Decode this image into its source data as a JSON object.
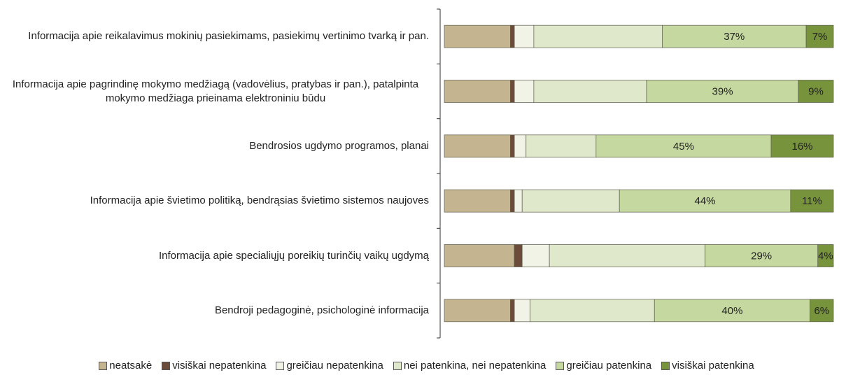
{
  "chart_data": {
    "type": "stacked-bar-horizontal",
    "categories": [
      "Informacija apie reikalavimus mokinių pasiekimams, pasiekimų vertinimo tvarką ir pan.",
      "Informacija apie pagrindinę mokymo medžiagą (vadovėlius, pratybas ir pan.), patalpinta mokymo medžiaga prieinama elektroniniu būdu",
      "Bendrosios ugdymo programos, planai",
      "Informacija apie švietimo politiką, bendrąsias švietimo sistemos naujoves",
      "Informacija apie specialiųjų poreikių turinčių vaikų ugdymą",
      "Bendroji pedagoginė, psichologinė informacija"
    ],
    "xlim": [
      0,
      100
    ],
    "series": [
      {
        "name": "neatsakė",
        "color": "#c4b48f",
        "values": [
          17,
          17,
          17,
          17,
          18,
          17
        ]
      },
      {
        "name": "visiškai nepatenkina",
        "color": "#6b4c3a",
        "values": [
          1,
          1,
          1,
          1,
          2,
          1
        ]
      },
      {
        "name": "greičiau nepatenkina",
        "color": "#f1f3e7",
        "values": [
          5,
          5,
          3,
          2,
          7,
          4
        ]
      },
      {
        "name": "nei patenkina, nei nepatenkina",
        "color": "#dfe8cb",
        "values": [
          33,
          29,
          18,
          25,
          40,
          32
        ]
      },
      {
        "name": "greičiau patenkina",
        "color": "#c4d89f",
        "values": [
          37,
          39,
          45,
          44,
          29,
          40
        ],
        "value_labels": [
          "37%",
          "39%",
          "45%",
          "44%",
          "29%",
          "40%"
        ]
      },
      {
        "name": "visiškai patenkina",
        "color": "#77933c",
        "values": [
          7,
          9,
          16,
          11,
          4,
          6
        ],
        "value_labels": [
          "7%",
          "9%",
          "16%",
          "11%",
          "4%",
          "6%"
        ]
      }
    ]
  }
}
